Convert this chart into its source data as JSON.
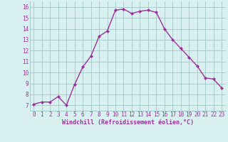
{
  "x": [
    0,
    1,
    2,
    3,
    4,
    5,
    6,
    7,
    8,
    9,
    10,
    11,
    12,
    13,
    14,
    15,
    16,
    17,
    18,
    19,
    20,
    21,
    22,
    23
  ],
  "y": [
    7.1,
    7.3,
    7.3,
    7.8,
    7.0,
    8.9,
    10.5,
    11.5,
    13.3,
    13.8,
    15.7,
    15.8,
    15.4,
    15.6,
    15.7,
    15.5,
    14.0,
    13.0,
    12.2,
    11.4,
    10.6,
    9.5,
    9.4,
    8.6
  ],
  "line_color": "#993399",
  "marker": "D",
  "marker_size": 2.0,
  "bg_color": "#d8f0f0",
  "grid_color": "#aacccc",
  "xlabel": "Windchill (Refroidissement éolien,°C)",
  "xlabel_color": "#993399",
  "tick_color": "#993399",
  "ylim": [
    6.5,
    16.5
  ],
  "xlim": [
    -0.5,
    23.5
  ],
  "yticks": [
    7,
    8,
    9,
    10,
    11,
    12,
    13,
    14,
    15,
    16
  ],
  "xticks": [
    0,
    1,
    2,
    3,
    4,
    5,
    6,
    7,
    8,
    9,
    10,
    11,
    12,
    13,
    14,
    15,
    16,
    17,
    18,
    19,
    20,
    21,
    22,
    23
  ],
  "line_width": 1.0,
  "tick_fontsize": 5.5,
  "xlabel_fontsize": 6.0
}
